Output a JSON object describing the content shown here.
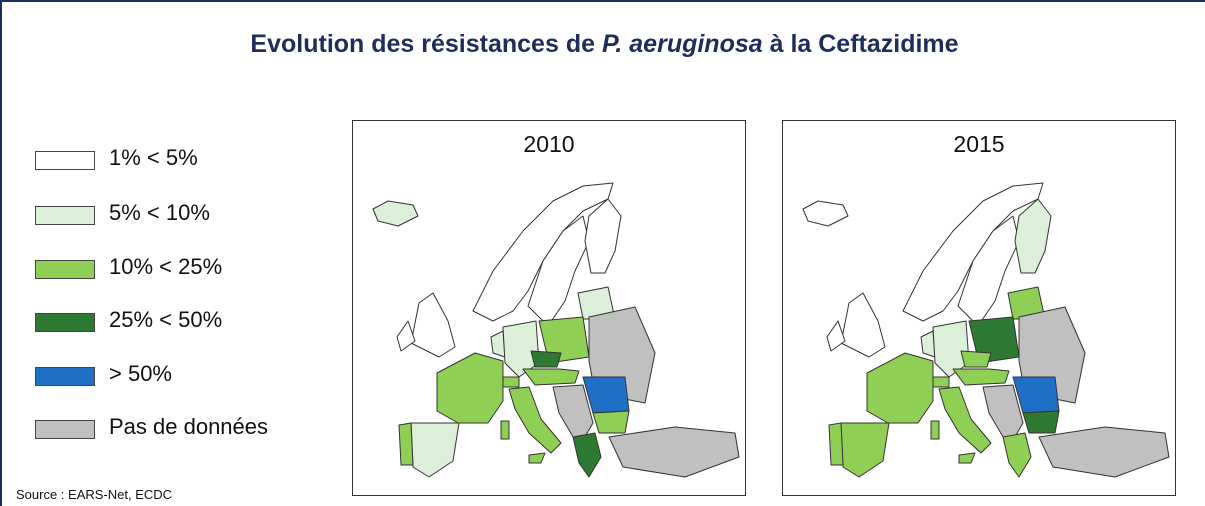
{
  "title": {
    "before": "Evolution des résistances de ",
    "italic": "P. aeruginosa",
    "after": " à la Ceftazidime"
  },
  "legend": [
    {
      "label": "1% < 5%",
      "color": "#ffffff"
    },
    {
      "label": "5% < 10%",
      "color": "#dcefd8"
    },
    {
      "label": "10% < 25%",
      "color": "#8fcf55"
    },
    {
      "label": "25% < 50%",
      "color": "#2f7a32"
    },
    {
      "label": "> 50%",
      "color": "#1f6fc6"
    },
    {
      "label": "Pas de données",
      "color": "#c0c0c0"
    }
  ],
  "maps": [
    {
      "title": "2010"
    },
    {
      "title": "2015"
    }
  ],
  "source": "Source : EARS-Net, ECDC"
}
